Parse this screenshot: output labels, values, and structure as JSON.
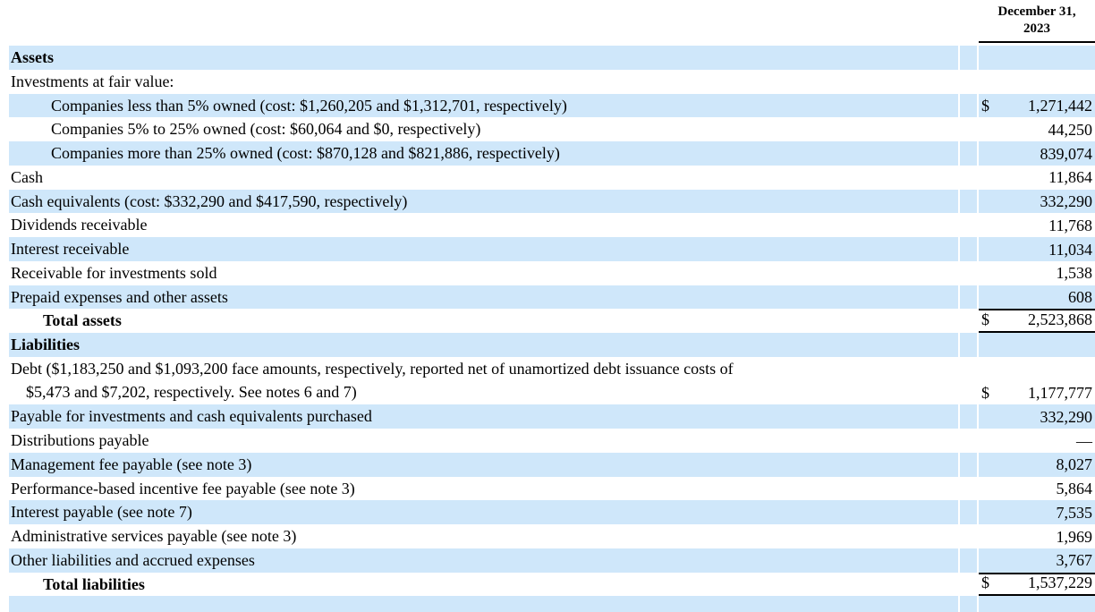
{
  "header": {
    "date_line1": "December 31,",
    "date_line2": "2023"
  },
  "colors": {
    "row_highlight": "#cfe7fa",
    "rule": "#000000",
    "text": "#000000"
  },
  "table": {
    "rows": [
      {
        "label": "Assets",
        "currency": "",
        "value": ""
      },
      {
        "label": "Investments at fair value:",
        "currency": "",
        "value": ""
      },
      {
        "label": "Companies less than 5% owned (cost: $1,260,205 and $1,312,701, respectively)",
        "currency": "$",
        "value": "1,271,442"
      },
      {
        "label": "Companies 5% to 25% owned (cost: $60,064 and $0, respectively)",
        "currency": "",
        "value": "44,250"
      },
      {
        "label": "Companies more than 25% owned (cost: $870,128 and $821,886, respectively)",
        "currency": "",
        "value": "839,074"
      },
      {
        "label": "Cash",
        "currency": "",
        "value": "11,864"
      },
      {
        "label": "Cash equivalents (cost: $332,290 and $417,590, respectively)",
        "currency": "",
        "value": "332,290"
      },
      {
        "label": "Dividends receivable",
        "currency": "",
        "value": "11,768"
      },
      {
        "label": "Interest receivable",
        "currency": "",
        "value": "11,034"
      },
      {
        "label": "Receivable for investments sold",
        "currency": "",
        "value": "1,538"
      },
      {
        "label": "Prepaid expenses and other assets",
        "currency": "",
        "value": "608"
      },
      {
        "label": "Total assets",
        "currency": "$",
        "value": "2,523,868"
      },
      {
        "label": "Liabilities",
        "currency": "",
        "value": ""
      },
      {
        "label_line1": "Debt ($1,183,250 and $1,093,200 face amounts, respectively, reported net of unamortized debt issuance costs of",
        "label_line2": "$5,473 and $7,202, respectively. See notes 6 and 7)",
        "currency": "$",
        "value": "1,177,777"
      },
      {
        "label": "Payable for investments and cash equivalents purchased",
        "currency": "",
        "value": "332,290"
      },
      {
        "label": "Distributions payable",
        "currency": "",
        "value": "—"
      },
      {
        "label": "Management fee payable (see note 3)",
        "currency": "",
        "value": "8,027"
      },
      {
        "label": "Performance-based incentive fee payable (see note 3)",
        "currency": "",
        "value": "5,864"
      },
      {
        "label": "Interest payable (see note 7)",
        "currency": "",
        "value": "7,535"
      },
      {
        "label": "Administrative services payable (see note 3)",
        "currency": "",
        "value": "1,969"
      },
      {
        "label": "Other liabilities and accrued expenses",
        "currency": "",
        "value": "3,767"
      },
      {
        "label": "Total liabilities",
        "currency": "$",
        "value": "1,537,229"
      }
    ]
  }
}
